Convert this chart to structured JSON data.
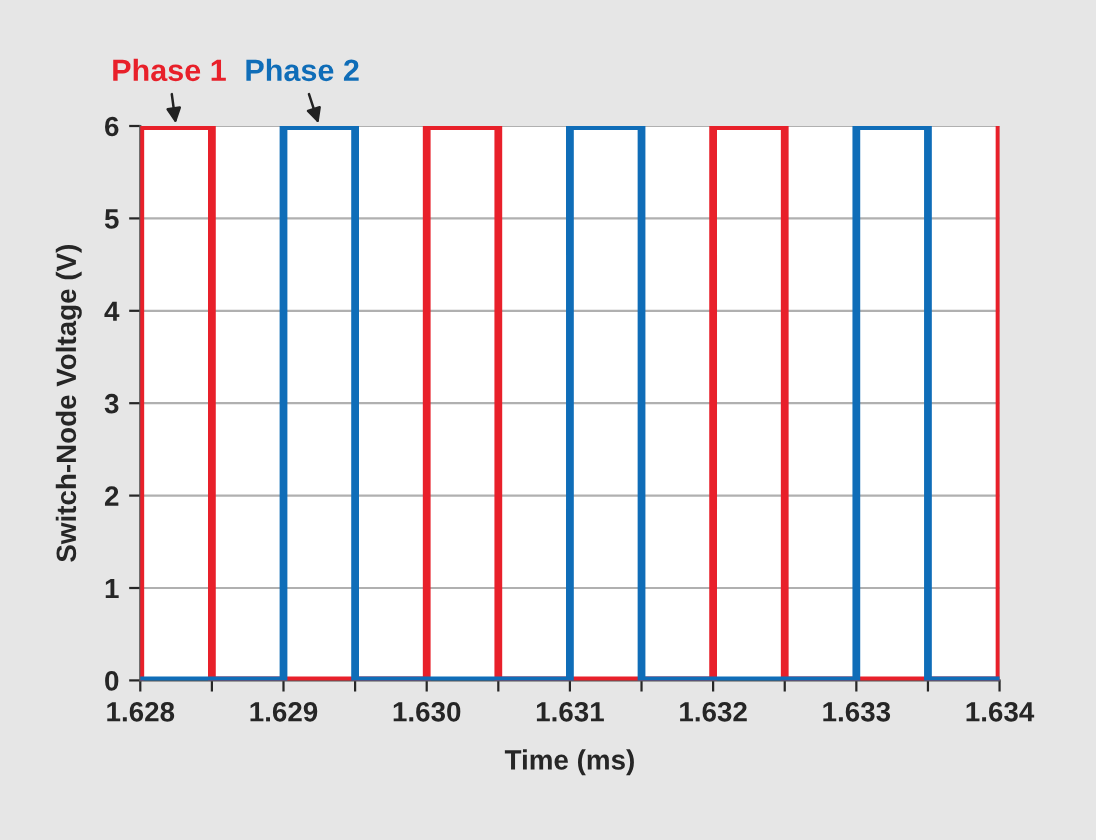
{
  "chart_data": {
    "type": "line",
    "xlabel": "Time (ms)",
    "ylabel": "Switch-Node Voltage (V)",
    "series": [
      {
        "name": "Phase 1",
        "color": "#e8202a",
        "x": [
          1.628,
          1.628,
          1.6285,
          1.6285,
          1.63,
          1.63,
          1.6305,
          1.6305,
          1.632,
          1.632,
          1.6325,
          1.6325,
          1.634,
          1.634
        ],
        "values": [
          0,
          6,
          6,
          0,
          0,
          6,
          6,
          0,
          0,
          6,
          6,
          0,
          0,
          6
        ]
      },
      {
        "name": "Phase 2",
        "color": "#0f6db8",
        "x": [
          1.628,
          1.629,
          1.629,
          1.6295,
          1.6295,
          1.631,
          1.631,
          1.6315,
          1.6315,
          1.633,
          1.633,
          1.6335,
          1.6335,
          1.634
        ],
        "values": [
          0,
          0,
          6,
          6,
          0,
          0,
          6,
          6,
          0,
          0,
          6,
          6,
          0,
          0
        ]
      }
    ],
    "xlim": [
      1.628,
      1.634
    ],
    "xticks": [
      1.628,
      {
        "value": 1.6285,
        "label": null
      },
      1.629,
      {
        "value": 1.6295,
        "label": null
      },
      {
        "value": 1.63,
        "label": "1.630"
      },
      {
        "value": 1.6305,
        "label": null
      },
      1.631,
      {
        "value": 1.6315,
        "label": null
      },
      1.632,
      {
        "value": 1.6325,
        "label": null
      },
      1.633,
      {
        "value": 1.6335,
        "label": null
      },
      1.634
    ],
    "ylim": [
      0,
      6
    ],
    "yticks": [
      0,
      1,
      2,
      3,
      4,
      5,
      6
    ],
    "grid": true,
    "marker": "none",
    "line_style": "solid"
  }
}
